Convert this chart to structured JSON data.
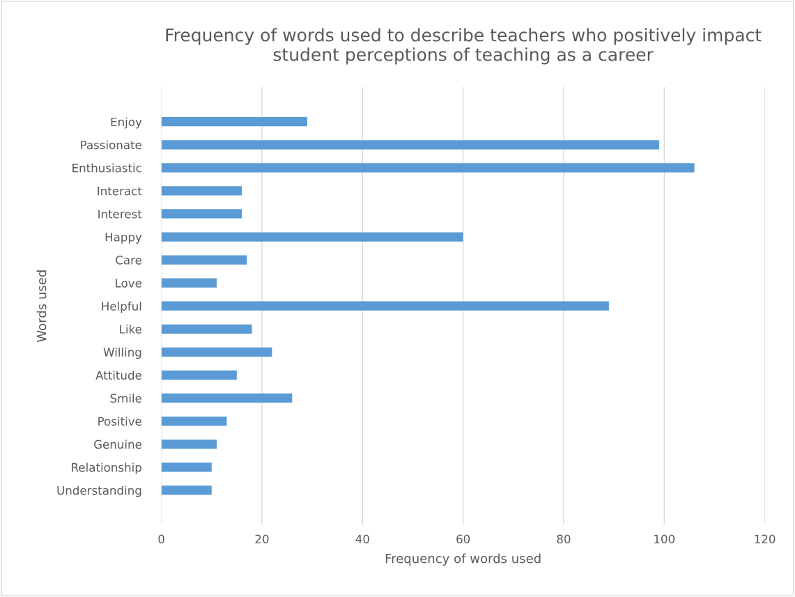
{
  "chart_data": {
    "type": "bar",
    "orientation": "horizontal",
    "title": "Frequency of words used to describe teachers who positively impact student perceptions of teaching as a career",
    "xlabel": "Frequency of words used",
    "ylabel": "Words used",
    "categories": [
      "Enjoy",
      "Passionate",
      "Enthusiastic",
      "Interact",
      "Interest",
      "Happy",
      "Care",
      "Love",
      "Helpful",
      "Like",
      "Willing",
      "Attitude",
      "Smile",
      "Positive",
      "Genuine",
      "Relationship",
      "Understanding"
    ],
    "values": [
      29,
      99,
      106,
      16,
      16,
      60,
      17,
      11,
      89,
      18,
      22,
      15,
      26,
      13,
      11,
      10,
      10
    ],
    "color": "#5b9bd5",
    "xlim": [
      0,
      120
    ],
    "xticks": [
      0,
      20,
      40,
      60,
      80,
      100,
      120
    ],
    "grid": "x"
  }
}
